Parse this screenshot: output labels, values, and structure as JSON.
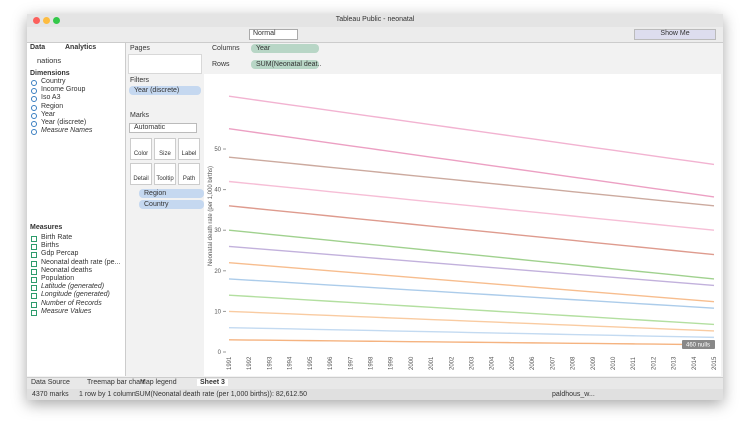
{
  "window": {
    "title": "Tableau Public - neonatal"
  },
  "toolbar": {
    "mode": "Normal",
    "show_me": "Show Me"
  },
  "data_pane": {
    "tabs": [
      "Data",
      "Analytics"
    ],
    "source": "nations",
    "dimensions_title": "Dimensions",
    "dimensions": [
      "Country",
      "Income Group",
      "Iso A3",
      "Region",
      "Year",
      "Year (discrete)",
      "Measure Names"
    ],
    "measures_title": "Measures",
    "measures": [
      "Birth Rate",
      "Births",
      "Gdp Percap",
      "Neonatal death rate (pe...",
      "Neonatal deaths",
      "Population",
      "Latitude (generated)",
      "Longitude (generated)",
      "Number of Records",
      "Measure Values"
    ]
  },
  "cards": {
    "pages": "Pages",
    "filters": "Filters",
    "filter_pill": "Year (discrete)",
    "marks": "Marks",
    "mark_type": "Automatic",
    "buttons": [
      "Color",
      "Size",
      "Label",
      "Detail",
      "Tooltip",
      "Path"
    ],
    "color_pill": "Region",
    "detail_pill": "Country"
  },
  "shelves": {
    "columns": "Columns",
    "columns_pill": "Year",
    "rows": "Rows",
    "rows_pill": "SUM(Neonatal deat.."
  },
  "chart_data": {
    "type": "line",
    "y_label": "Neonatal death rate (per 1,000 births)",
    "nulls": "460 nulls",
    "x": [
      1991,
      1992,
      1993,
      1994,
      1995,
      1996,
      1997,
      1998,
      1999,
      2000,
      2001,
      2002,
      2003,
      2004,
      2005,
      2006,
      2007,
      2008,
      2009,
      2010,
      2011,
      2012,
      2013,
      2014,
      2015
    ],
    "ylim": [
      0,
      67
    ],
    "yticks": [
      0,
      10,
      20,
      30,
      40,
      50
    ],
    "series": [
      {
        "color": "#f0a6c9",
        "values": [
          63,
          62.3,
          61.6,
          60.9,
          60.2,
          59.5,
          58.8,
          58.1,
          57.4,
          56.7,
          56,
          55.3,
          54.6,
          53.9,
          53.2,
          52.5,
          51.8,
          51.1,
          50.4,
          49.7,
          49,
          48.3,
          47.6,
          46.9,
          46.2
        ]
      },
      {
        "color": "#e98fb9",
        "values": [
          55,
          54.3,
          53.6,
          52.9,
          52.2,
          51.5,
          50.8,
          50.1,
          49.4,
          48.7,
          48,
          47.3,
          46.6,
          45.9,
          45.2,
          44.5,
          43.8,
          43.1,
          42.4,
          41.7,
          41,
          40.3,
          39.6,
          38.9,
          38.2
        ]
      },
      {
        "color": "#c39b8e",
        "values": [
          48,
          47.5,
          47,
          46.5,
          46,
          45.5,
          45,
          44.5,
          44,
          43.5,
          43,
          42.5,
          42,
          41.5,
          41,
          40.5,
          40,
          39.5,
          39,
          38.5,
          38,
          37.5,
          37,
          36.5,
          36
        ]
      },
      {
        "color": "#f4b3cf",
        "values": [
          42,
          41.5,
          41,
          40.5,
          40,
          39.5,
          39,
          38.5,
          38,
          37.5,
          37,
          36.5,
          36,
          35.5,
          35,
          34.5,
          34,
          33.5,
          33,
          32.5,
          32,
          31.5,
          31,
          30.5,
          30
        ]
      },
      {
        "color": "#d8897a",
        "values": [
          36,
          35.5,
          35,
          34.5,
          34,
          33.5,
          33,
          32.5,
          32,
          31.5,
          31,
          30.5,
          30,
          29.5,
          29,
          28.5,
          28,
          27.5,
          27,
          26.5,
          26,
          25.5,
          25,
          24.5,
          24
        ]
      },
      {
        "color": "#8fc97a",
        "values": [
          30,
          29.5,
          29,
          28.5,
          28,
          27.5,
          27,
          26.5,
          26,
          25.5,
          25,
          24.5,
          24,
          23.5,
          23,
          22.5,
          22,
          21.5,
          21,
          20.5,
          20,
          19.5,
          19,
          18.5,
          18
        ]
      },
      {
        "color": "#b7a3d6",
        "values": [
          26,
          25.6,
          25.2,
          24.8,
          24.4,
          24,
          23.6,
          23.2,
          22.8,
          22.4,
          22,
          21.6,
          21.2,
          20.8,
          20.4,
          20,
          19.6,
          19.2,
          18.8,
          18.4,
          18,
          17.6,
          17.2,
          16.8,
          16.4
        ]
      },
      {
        "color": "#f6b27a",
        "values": [
          22,
          21.6,
          21.2,
          20.8,
          20.4,
          20,
          19.6,
          19.2,
          18.8,
          18.4,
          18,
          17.6,
          17.2,
          16.8,
          16.4,
          16,
          15.6,
          15.2,
          14.8,
          14.4,
          14,
          13.6,
          13.2,
          12.8,
          12.4
        ]
      },
      {
        "color": "#9ec3e6",
        "values": [
          18,
          17.7,
          17.4,
          17.1,
          16.8,
          16.5,
          16.2,
          15.9,
          15.6,
          15.3,
          15,
          14.7,
          14.4,
          14.1,
          13.8,
          13.5,
          13.2,
          12.9,
          12.6,
          12.3,
          12,
          11.7,
          11.4,
          11.1,
          10.8
        ]
      },
      {
        "color": "#a6d98f",
        "values": [
          14,
          13.7,
          13.4,
          13.1,
          12.8,
          12.5,
          12.2,
          11.9,
          11.6,
          11.3,
          11,
          10.7,
          10.4,
          10.1,
          9.8,
          9.5,
          9.2,
          8.9,
          8.6,
          8.3,
          8,
          7.7,
          7.4,
          7.1,
          6.8
        ]
      },
      {
        "color": "#f8c290",
        "values": [
          10,
          9.8,
          9.6,
          9.4,
          9.2,
          9,
          8.8,
          8.6,
          8.4,
          8.2,
          8,
          7.8,
          7.6,
          7.4,
          7.2,
          7,
          6.8,
          6.6,
          6.4,
          6.2,
          6,
          5.8,
          5.6,
          5.4,
          5.2
        ]
      },
      {
        "color": "#b9d3ee",
        "values": [
          6,
          5.9,
          5.8,
          5.7,
          5.6,
          5.5,
          5.4,
          5.3,
          5.2,
          5.1,
          5,
          4.9,
          4.8,
          4.7,
          4.6,
          4.5,
          4.4,
          4.3,
          4.2,
          4.1,
          4,
          3.9,
          3.8,
          3.7,
          3.6
        ]
      },
      {
        "color": "#f3a66a",
        "values": [
          3,
          2.95,
          2.9,
          2.85,
          2.8,
          2.75,
          2.7,
          2.65,
          2.6,
          2.55,
          2.5,
          2.45,
          2.4,
          2.35,
          2.3,
          2.25,
          2.2,
          2.15,
          2.1,
          2.05,
          2,
          1.95,
          1.9,
          1.85,
          1.8
        ]
      }
    ]
  },
  "sheet_tabs": [
    "Data Source",
    "Treemap bar chart",
    "Map legend",
    "Sheet 3"
  ],
  "status": {
    "marks": "4370 marks",
    "layout": "1 row by 1 column",
    "sum": "SUM(Neonatal death rate (per 1,000 births)): 82,612.50",
    "user": "paldhous_w..."
  }
}
